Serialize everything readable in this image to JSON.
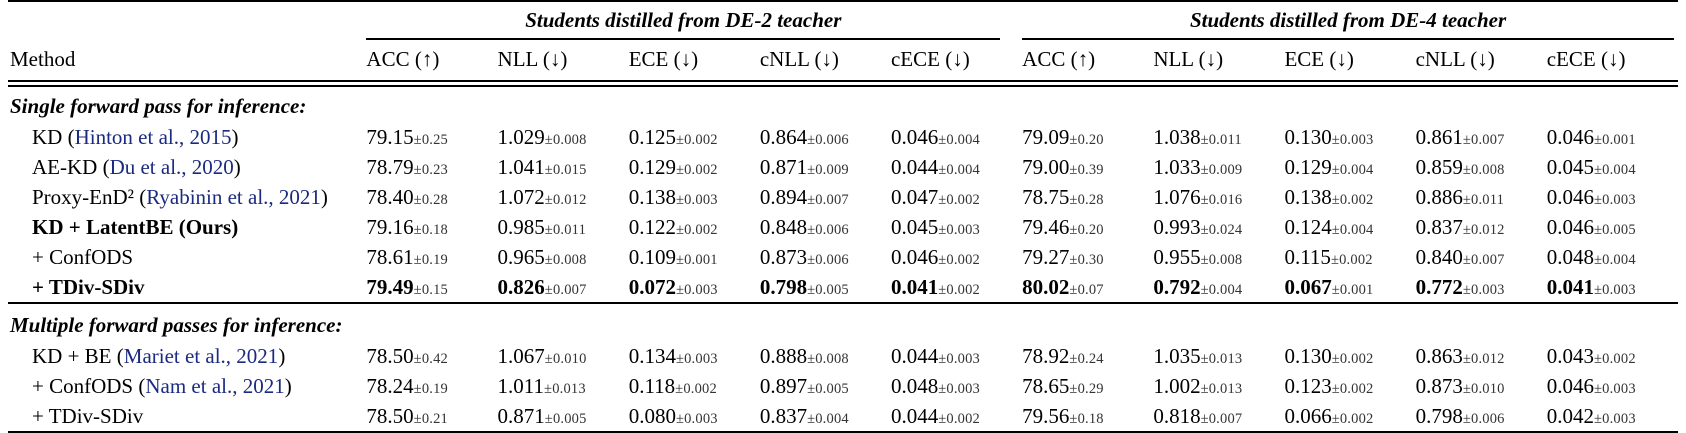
{
  "table": {
    "method_header": "Method",
    "colors": {
      "citation": "#1b2a80",
      "text": "#000000",
      "rule": "#000000"
    },
    "groups": [
      {
        "title": "Students distilled from DE-2 teacher"
      },
      {
        "title": "Students distilled from DE-4 teacher"
      }
    ],
    "columns": [
      "ACC (↑)",
      "NLL (↓)",
      "ECE (↓)",
      "cNLL (↓)",
      "cECE (↓)"
    ],
    "sections": [
      {
        "label": "Single forward pass for inference:",
        "rows": [
          {
            "method": {
              "pre": "KD (",
              "cite": "Hinton et al., 2015",
              "post": ")"
            },
            "bold_method": false,
            "bold_values": false,
            "de2": [
              "79.15±0.25",
              "1.029±0.008",
              "0.125±0.002",
              "0.864±0.006",
              "0.046±0.004"
            ],
            "de4": [
              "79.09±0.20",
              "1.038±0.011",
              "0.130±0.003",
              "0.861±0.007",
              "0.046±0.001"
            ]
          },
          {
            "method": {
              "pre": "AE-KD (",
              "cite": "Du et al., 2020",
              "post": ")"
            },
            "bold_method": false,
            "bold_values": false,
            "de2": [
              "78.79±0.23",
              "1.041±0.015",
              "0.129±0.002",
              "0.871±0.009",
              "0.044±0.004"
            ],
            "de4": [
              "79.00±0.39",
              "1.033±0.009",
              "0.129±0.004",
              "0.859±0.008",
              "0.045±0.004"
            ]
          },
          {
            "method": {
              "pre": "Proxy-EnD² (",
              "cite": "Ryabinin et al., 2021",
              "post": ")"
            },
            "bold_method": false,
            "bold_values": false,
            "de2": [
              "78.40±0.28",
              "1.072±0.012",
              "0.138±0.003",
              "0.894±0.007",
              "0.047±0.002"
            ],
            "de4": [
              "78.75±0.28",
              "1.076±0.016",
              "0.138±0.002",
              "0.886±0.011",
              "0.046±0.003"
            ]
          },
          {
            "method": {
              "pre": "KD + LatentBE (Ours)",
              "cite": null,
              "post": ""
            },
            "bold_method": true,
            "bold_values": false,
            "de2": [
              "79.16±0.18",
              "0.985±0.011",
              "0.122±0.002",
              "0.848±0.006",
              "0.045±0.003"
            ],
            "de4": [
              "79.46±0.20",
              "0.993±0.024",
              "0.124±0.004",
              "0.837±0.012",
              "0.046±0.005"
            ]
          },
          {
            "method": {
              "pre": "+ ConfODS",
              "cite": null,
              "post": ""
            },
            "bold_method": false,
            "bold_values": false,
            "de2": [
              "78.61±0.19",
              "0.965±0.008",
              "0.109±0.001",
              "0.873±0.006",
              "0.046±0.002"
            ],
            "de4": [
              "79.27±0.30",
              "0.955±0.008",
              "0.115±0.002",
              "0.840±0.007",
              "0.048±0.004"
            ]
          },
          {
            "method": {
              "pre": "+ TDiv-SDiv",
              "cite": null,
              "post": ""
            },
            "bold_method": true,
            "bold_values": true,
            "de2": [
              "79.49±0.15",
              "0.826±0.007",
              "0.072±0.003",
              "0.798±0.005",
              "0.041±0.002"
            ],
            "de4": [
              "80.02±0.07",
              "0.792±0.004",
              "0.067±0.001",
              "0.772±0.003",
              "0.041±0.003"
            ]
          }
        ]
      },
      {
        "label": "Multiple forward passes for inference:",
        "rows": [
          {
            "method": {
              "pre": "KD + BE (",
              "cite": "Mariet et al., 2021",
              "post": ")"
            },
            "bold_method": false,
            "bold_values": false,
            "de2": [
              "78.50±0.42",
              "1.067±0.010",
              "0.134±0.003",
              "0.888±0.008",
              "0.044±0.003"
            ],
            "de4": [
              "78.92±0.24",
              "1.035±0.013",
              "0.130±0.002",
              "0.863±0.012",
              "0.043±0.002"
            ]
          },
          {
            "method": {
              "pre": "+ ConfODS (",
              "cite": "Nam et al., 2021",
              "post": ")"
            },
            "bold_method": false,
            "bold_values": false,
            "de2": [
              "78.24±0.19",
              "1.011±0.013",
              "0.118±0.002",
              "0.897±0.005",
              "0.048±0.003"
            ],
            "de4": [
              "78.65±0.29",
              "1.002±0.013",
              "0.123±0.002",
              "0.873±0.010",
              "0.046±0.003"
            ]
          },
          {
            "method": {
              "pre": "+ TDiv-SDiv",
              "cite": null,
              "post": ""
            },
            "bold_method": false,
            "bold_values": false,
            "de2": [
              "78.50±0.21",
              "0.871±0.005",
              "0.080±0.003",
              "0.837±0.004",
              "0.044±0.002"
            ],
            "de4": [
              "79.56±0.18",
              "0.818±0.007",
              "0.066±0.002",
              "0.798±0.006",
              "0.042±0.003"
            ]
          }
        ]
      }
    ]
  }
}
